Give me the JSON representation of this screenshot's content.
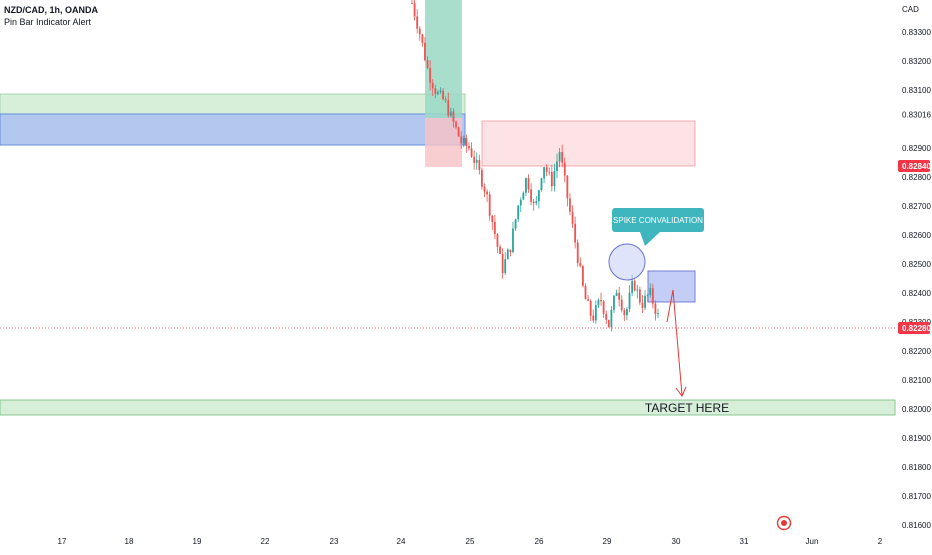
{
  "header": {
    "symbol_line": "NZD/CAD, 1h, OANDA",
    "indicator": "Pin Bar Indicator Alert"
  },
  "axis": {
    "currency": "CAD",
    "y_ticks": [
      "0.83300",
      "0.83200",
      "0.83100",
      "0.83016",
      "0.82900",
      "0.82840",
      "0.82800",
      "0.82700",
      "0.82600",
      "0.82500",
      "0.82400",
      "0.82300",
      "0.82280",
      "0.82200",
      "0.82100",
      "0.82000",
      "0.81900",
      "0.81800",
      "0.81700",
      "0.81600"
    ],
    "x_ticks": [
      "17",
      "18",
      "19",
      "22",
      "23",
      "24",
      "25",
      "26",
      "29",
      "30",
      "31",
      "Jun",
      "2"
    ]
  },
  "price_tags": {
    "upper": "0.82840",
    "current": "0.82280"
  },
  "annotations": {
    "callout": "SPIKE CONVALIDATION",
    "target": "TARGET HERE"
  },
  "colors": {
    "up": "#26a69a",
    "down": "#ef5350",
    "tag_red": "#f23645",
    "green_zone": "#d7eed9",
    "blue_zone": "#b3c8ef",
    "red_zone": "#fde3e5",
    "callout": "#3fb6bd",
    "arrow": "#e53935"
  },
  "chart_data": {
    "type": "candlestick",
    "symbol": "NZD/CAD",
    "timeframe": "1h",
    "ylim": [
      0.8158,
      0.8342
    ],
    "x_date_labels": [
      "17",
      "18",
      "19",
      "22",
      "23",
      "24",
      "25",
      "26",
      "29",
      "30",
      "31",
      "Jun",
      "2"
    ],
    "last_price": 0.8228,
    "marked_level": 0.8284,
    "zones": [
      {
        "kind": "green",
        "y_low": 0.83,
        "y_high": 0.8308
      },
      {
        "kind": "blue",
        "y_low": 0.8292,
        "y_high": 0.8302
      },
      {
        "kind": "red",
        "y_low": 0.8284,
        "y_high": 0.83
      },
      {
        "kind": "blue",
        "y_low": 0.82375,
        "y_high": 0.8248
      },
      {
        "kind": "green",
        "y_low": 0.81975,
        "y_high": 0.82025
      }
    ],
    "target_level": 0.82,
    "candles_close_path": [
      0.834,
      0.8329,
      0.8316,
      0.8309,
      0.8306,
      0.8299,
      0.8292,
      0.829,
      0.8283,
      0.8275,
      0.8262,
      0.8248,
      0.8256,
      0.8271,
      0.828,
      0.8268,
      0.8285,
      0.8278,
      0.8289,
      0.8272,
      0.8256,
      0.8239,
      0.8231,
      0.8238,
      0.8229,
      0.8242,
      0.8232,
      0.8244,
      0.8236,
      0.824,
      0.8232
    ]
  }
}
